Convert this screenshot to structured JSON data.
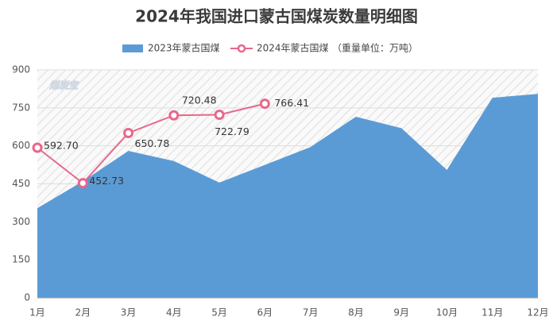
{
  "chart_data": {
    "type": "area_line",
    "title": "2024年我国进口蒙古国煤炭数量明细图",
    "watermark": "煤炭宝",
    "unit_note": "（重量单位：万吨）",
    "categories": [
      "1月",
      "2月",
      "3月",
      "4月",
      "5月",
      "6月",
      "7月",
      "8月",
      "9月",
      "10月",
      "11月",
      "12月"
    ],
    "series": [
      {
        "name": "2023年蒙古国煤",
        "color": "#5b9bd5",
        "kind": "area",
        "values": [
          354,
          460,
          580,
          540,
          455,
          525,
          595,
          715,
          670,
          505,
          790,
          805
        ]
      },
      {
        "name": "2024年蒙古国煤",
        "color": "#e8678a",
        "kind": "line",
        "values": [
          592.7,
          452.73,
          650.78,
          720.48,
          722.79,
          766.41,
          null,
          null,
          null,
          null,
          null,
          null
        ],
        "value_labels": [
          "592.70",
          "452.73",
          "650.78",
          "720.48",
          "722.79",
          "766.41",
          null,
          null,
          null,
          null,
          null,
          null
        ]
      }
    ],
    "ylim": [
      0,
      900
    ],
    "yticks": [
      0,
      150,
      300,
      450,
      600,
      750,
      900
    ],
    "grid": true
  }
}
